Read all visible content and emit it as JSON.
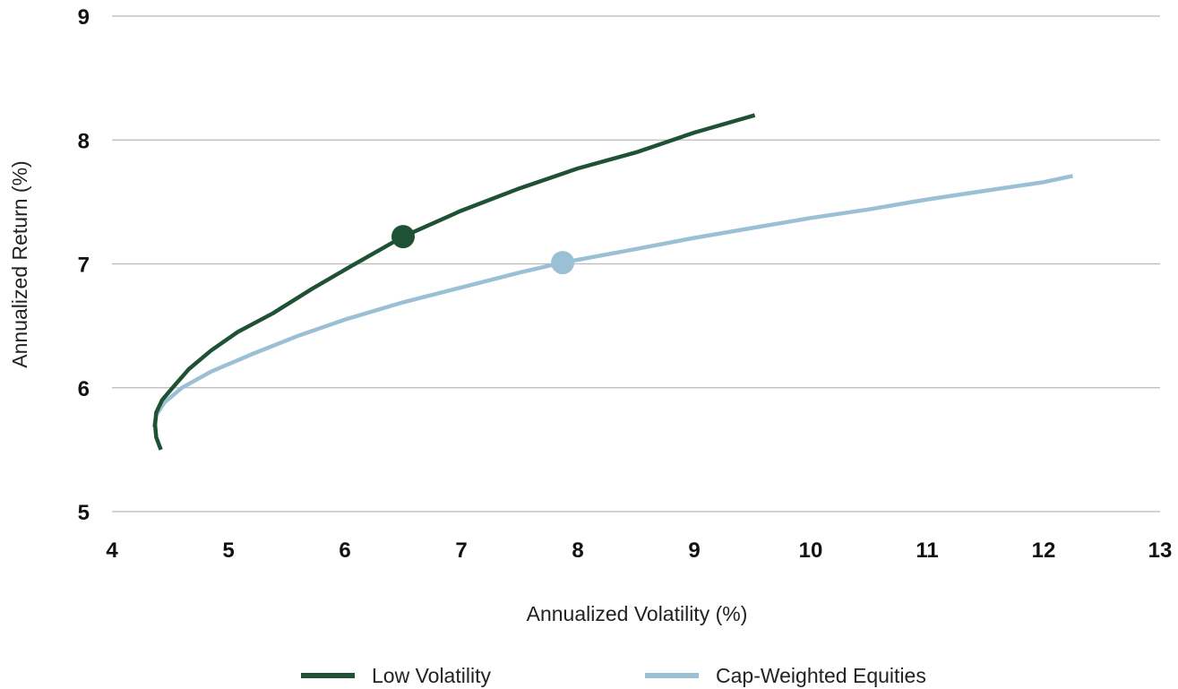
{
  "chart_data": {
    "type": "line",
    "xlabel": "Annualized Volatility (%)",
    "ylabel": "Annualized Return (%)",
    "xlim": [
      4,
      13
    ],
    "ylim": [
      5,
      9
    ],
    "x_ticks": [
      "4",
      "5",
      "6",
      "7",
      "8",
      "9",
      "10",
      "11",
      "12",
      "13"
    ],
    "y_ticks": [
      "5",
      "6",
      "7",
      "8",
      "9"
    ],
    "grid": "horizontal",
    "legend_position": "bottom",
    "series": [
      {
        "name": "Low Volatility",
        "color": "#1f5135",
        "points": [
          [
            4.42,
            5.5
          ],
          [
            4.38,
            5.6
          ],
          [
            4.37,
            5.7
          ],
          [
            4.38,
            5.8
          ],
          [
            4.43,
            5.9
          ],
          [
            4.52,
            6.0
          ],
          [
            4.66,
            6.15
          ],
          [
            4.85,
            6.3
          ],
          [
            5.08,
            6.45
          ],
          [
            5.38,
            6.6
          ],
          [
            5.72,
            6.8
          ],
          [
            6.05,
            6.98
          ],
          [
            6.5,
            7.22
          ],
          [
            7.0,
            7.43
          ],
          [
            7.5,
            7.61
          ],
          [
            8.0,
            7.77
          ],
          [
            8.5,
            7.9
          ],
          [
            9.0,
            8.06
          ],
          [
            9.52,
            8.2
          ]
        ],
        "highlight": [
          6.5,
          7.22
        ]
      },
      {
        "name": "Cap-Weighted Equities",
        "color": "#9bbfd4",
        "points": [
          [
            4.36,
            5.68
          ],
          [
            4.38,
            5.78
          ],
          [
            4.45,
            5.88
          ],
          [
            4.6,
            6.0
          ],
          [
            4.85,
            6.13
          ],
          [
            5.2,
            6.27
          ],
          [
            5.6,
            6.42
          ],
          [
            6.0,
            6.55
          ],
          [
            6.5,
            6.69
          ],
          [
            7.0,
            6.81
          ],
          [
            7.5,
            6.93
          ],
          [
            7.87,
            7.01
          ],
          [
            8.5,
            7.12
          ],
          [
            9.0,
            7.21
          ],
          [
            9.5,
            7.29
          ],
          [
            10.0,
            7.37
          ],
          [
            10.5,
            7.44
          ],
          [
            11.0,
            7.52
          ],
          [
            11.5,
            7.59
          ],
          [
            12.0,
            7.66
          ],
          [
            12.25,
            7.71
          ]
        ],
        "highlight": [
          7.87,
          7.01
        ]
      }
    ]
  }
}
